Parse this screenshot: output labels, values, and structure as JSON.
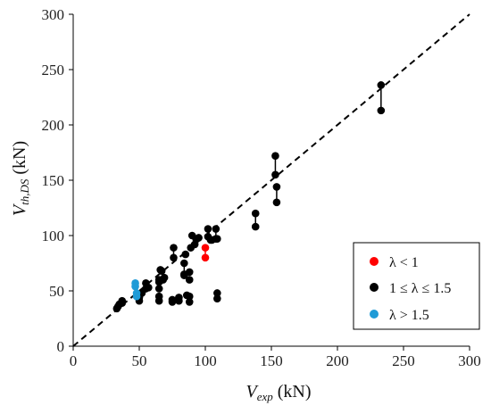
{
  "chart_data": {
    "type": "scatter",
    "xlabel": {
      "main": "V",
      "sub": "exp",
      "unit": " (kN)"
    },
    "ylabel": {
      "main": "V",
      "sub": "th,DS",
      "unit": " (kN)"
    },
    "xlim": [
      0,
      300
    ],
    "ylim": [
      0,
      300
    ],
    "xticks": [
      "0",
      "50",
      "100",
      "150",
      "200",
      "250",
      "300"
    ],
    "yticks": [
      "0",
      "50",
      "100",
      "150",
      "200",
      "250",
      "300"
    ],
    "grid": false,
    "legend_position": "lower-right",
    "reference_line": {
      "from": [
        0,
        0
      ],
      "to": [
        300,
        300
      ],
      "style": "dashed"
    },
    "series": [
      {
        "name": "λ < 1",
        "color": "#ff0000",
        "points": [
          [
            100,
            89
          ],
          [
            100,
            80
          ]
        ],
        "segments": [
          [
            [
              100,
              89
            ],
            [
              100,
              80
            ]
          ]
        ]
      },
      {
        "name": "1 ≤ λ ≤ 1.5",
        "color": "#000000",
        "points": [
          [
            33,
            34
          ],
          [
            34,
            36
          ],
          [
            35,
            38
          ],
          [
            37,
            41
          ],
          [
            37,
            39
          ],
          [
            50,
            41
          ],
          [
            50,
            44
          ],
          [
            52,
            48
          ],
          [
            55,
            52
          ],
          [
            55,
            57
          ],
          [
            57,
            53
          ],
          [
            65,
            41
          ],
          [
            65,
            45
          ],
          [
            65,
            52
          ],
          [
            65,
            58
          ],
          [
            65,
            60
          ],
          [
            66,
            69
          ],
          [
            67,
            68
          ],
          [
            68,
            60
          ],
          [
            69,
            62
          ],
          [
            75,
            40
          ],
          [
            75,
            42
          ],
          [
            76,
            80
          ],
          [
            76,
            89
          ],
          [
            80,
            41
          ],
          [
            80,
            44
          ],
          [
            84,
            64
          ],
          [
            84,
            65
          ],
          [
            84,
            75
          ],
          [
            85,
            83
          ],
          [
            86,
            46
          ],
          [
            88,
            40
          ],
          [
            88,
            45
          ],
          [
            88,
            60
          ],
          [
            88,
            67
          ],
          [
            89,
            89
          ],
          [
            90,
            100
          ],
          [
            92,
            92
          ],
          [
            93,
            97
          ],
          [
            95,
            98
          ],
          [
            102,
            99
          ],
          [
            102,
            106
          ],
          [
            104,
            96
          ],
          [
            105,
            96
          ],
          [
            108,
            97
          ],
          [
            108,
            106
          ],
          [
            109,
            97
          ],
          [
            109,
            43
          ],
          [
            109,
            48
          ],
          [
            138,
            120
          ],
          [
            138,
            108
          ],
          [
            153,
            172
          ],
          [
            153,
            155
          ],
          [
            154,
            144
          ],
          [
            154,
            130
          ],
          [
            233,
            236
          ],
          [
            233,
            213
          ]
        ],
        "segments": [
          [
            [
              76,
              80
            ],
            [
              76,
              89
            ]
          ],
          [
            [
              84,
              64
            ],
            [
              84,
              75
            ]
          ],
          [
            [
              102,
              99
            ],
            [
              102,
              106
            ]
          ],
          [
            [
              108,
              97
            ],
            [
              108,
              106
            ]
          ],
          [
            [
              138,
              108
            ],
            [
              138,
              120
            ]
          ],
          [
            [
              153,
              155
            ],
            [
              153,
              172
            ]
          ],
          [
            [
              154,
              130
            ],
            [
              154,
              144
            ]
          ],
          [
            [
              233,
              213
            ],
            [
              233,
              236
            ]
          ]
        ]
      },
      {
        "name": "λ > 1.5",
        "color": "#1f9bd7",
        "points": [
          [
            47,
            57
          ],
          [
            47,
            54
          ],
          [
            48,
            48
          ],
          [
            48,
            45
          ]
        ],
        "segments": [
          [
            [
              47,
              54
            ],
            [
              47,
              57
            ]
          ],
          [
            [
              48,
              45
            ],
            [
              48,
              48
            ]
          ]
        ]
      }
    ]
  }
}
